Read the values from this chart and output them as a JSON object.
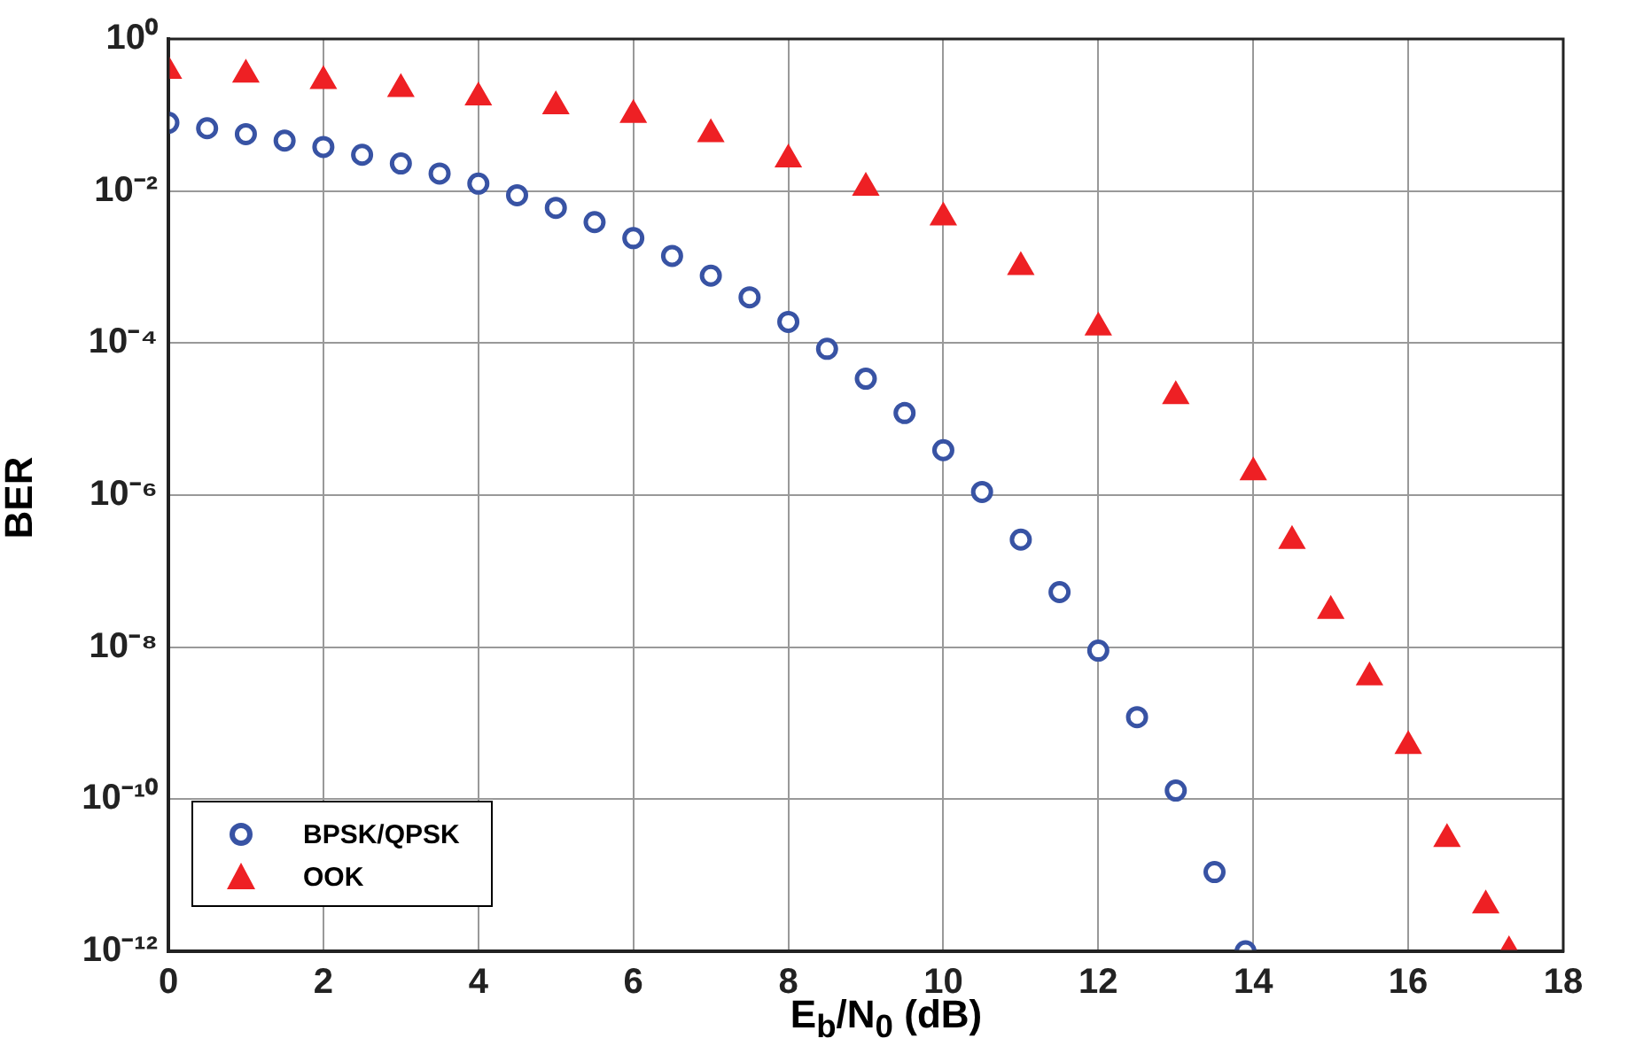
{
  "chart_data": {
    "type": "scatter",
    "xlabel": "E$_{b}$/N$_{0}$ (dB)",
    "ylabel": "BER",
    "log": "y",
    "grid": true,
    "legend": "bottom left",
    "xlim": [
      0,
      18
    ],
    "xticks": [
      0,
      2,
      4,
      6,
      8,
      10,
      12,
      14,
      16,
      18
    ],
    "ylim": [
      1e-12,
      1
    ],
    "yticks": [
      {
        "value": 1e-12,
        "label": "10⁻¹²"
      },
      {
        "value": 1e-10,
        "label": "10⁻¹⁰"
      },
      {
        "value": 1e-08,
        "label": "10⁻⁸"
      },
      {
        "value": 1e-06,
        "label": "10⁻⁶"
      },
      {
        "value": 0.0001,
        "label": "10⁻⁴"
      },
      {
        "value": 0.01,
        "label": "10⁻²"
      },
      {
        "value": 1,
        "label": "10⁰"
      }
    ],
    "series": [
      {
        "name": "BPSK/QPSK",
        "color": "#3853a4",
        "marker": "circle",
        "x": [
          0,
          0.5,
          1,
          1.5,
          2,
          2.5,
          3,
          3.5,
          4,
          4.5,
          5,
          5.5,
          6,
          6.5,
          7,
          7.5,
          8,
          8.5,
          9,
          9.5,
          10,
          10.5,
          11,
          11.5,
          12,
          12.5,
          13,
          13.5,
          13.9
        ],
        "values": [
          0.079,
          0.067,
          0.056,
          0.046,
          0.038,
          0.03,
          0.023,
          0.017,
          0.0125,
          0.0088,
          0.006,
          0.0039,
          0.0024,
          0.0014,
          0.00077,
          0.0004,
          0.00019,
          8.4e-05,
          3.4e-05,
          1.2e-05,
          3.9e-06,
          1.1e-06,
          2.6e-07,
          5.3e-08,
          9e-09,
          1.2e-09,
          1.3e-10,
          1.1e-11,
          1e-12
        ]
      },
      {
        "name": "OOK",
        "color": "#ee2024",
        "marker": "triangle",
        "x": [
          0,
          1,
          2,
          3,
          4,
          5,
          6,
          7,
          8,
          9,
          10,
          11,
          12,
          13,
          14,
          14.5,
          15,
          15.5,
          16,
          16.5,
          17,
          17.3
        ],
        "values": [
          0.38,
          0.34,
          0.28,
          0.22,
          0.17,
          0.13,
          0.1,
          0.056,
          0.026,
          0.011,
          0.0045,
          0.001,
          0.00016,
          2e-05,
          2e-06,
          2.5e-07,
          3e-08,
          4e-09,
          5e-10,
          3e-11,
          4e-12,
          1e-12
        ]
      }
    ]
  }
}
